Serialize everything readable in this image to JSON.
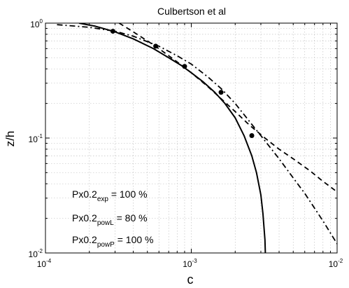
{
  "chart_data": {
    "type": "line",
    "title": "Culbertson et al",
    "xlabel": "c",
    "ylabel": "z/h",
    "xscale": "log",
    "yscale": "log",
    "xlim": [
      0.0001,
      0.01
    ],
    "ylim": [
      0.01,
      1
    ],
    "grid": true,
    "x_ticks": [
      {
        "base": "10",
        "exp": "-4",
        "value": 0.0001
      },
      {
        "base": "10",
        "exp": "-3",
        "value": 0.001
      },
      {
        "base": "10",
        "exp": "-2",
        "value": 0.01
      }
    ],
    "y_ticks": [
      {
        "base": "10",
        "exp": "-2",
        "value": 0.01
      },
      {
        "base": "10",
        "exp": "-1",
        "value": 0.1
      },
      {
        "base": "10",
        "exp": "0",
        "value": 1
      }
    ],
    "series": [
      {
        "style": "solid",
        "color": "#000000",
        "x": [
          0.00017,
          0.00022,
          0.0003,
          0.0004,
          0.00055,
          0.0007,
          0.00085,
          0.001,
          0.0012,
          0.00145,
          0.0017,
          0.002,
          0.0023,
          0.0026,
          0.0028,
          0.003,
          0.0031,
          0.0032,
          0.00322
        ],
        "y": [
          1.0,
          0.94,
          0.84,
          0.73,
          0.6,
          0.5,
          0.43,
          0.37,
          0.31,
          0.25,
          0.2,
          0.15,
          0.105,
          0.07,
          0.05,
          0.032,
          0.022,
          0.013,
          0.01
        ]
      },
      {
        "style": "dashed",
        "color": "#000000",
        "x": [
          0.00032,
          0.0004,
          0.0005,
          0.0006,
          0.0008,
          0.001,
          0.0013,
          0.0016,
          0.002,
          0.0025,
          0.0032,
          0.004,
          0.005,
          0.0065,
          0.008,
          0.01
        ],
        "y": [
          1.0,
          0.84,
          0.7,
          0.6,
          0.46,
          0.37,
          0.28,
          0.22,
          0.17,
          0.13,
          0.1,
          0.08,
          0.066,
          0.052,
          0.042,
          0.034
        ]
      },
      {
        "style": "dashdot",
        "color": "#000000",
        "x": [
          0.00012,
          0.0002,
          0.0003,
          0.0004,
          0.0006,
          0.0008,
          0.001,
          0.0013,
          0.0016,
          0.002,
          0.0025,
          0.003,
          0.004,
          0.005,
          0.006,
          0.008,
          0.01
        ],
        "y": [
          0.97,
          0.92,
          0.85,
          0.77,
          0.63,
          0.52,
          0.44,
          0.34,
          0.27,
          0.2,
          0.14,
          0.105,
          0.066,
          0.045,
          0.033,
          0.019,
          0.012
        ]
      },
      {
        "style": "markers",
        "color": "#000000",
        "x": [
          0.00029,
          0.00057,
          0.0009,
          0.0016,
          0.0026
        ],
        "y": [
          0.85,
          0.63,
          0.42,
          0.25,
          0.105
        ]
      }
    ],
    "annotations": [
      {
        "main": "Px0.2",
        "sub": "exp",
        "suffix": " = 100 %"
      },
      {
        "main": "Px0.2",
        "sub": "powL",
        "suffix": " = 80 %"
      },
      {
        "main": "Px0.2",
        "sub": "powP",
        "suffix": " = 100 %"
      }
    ]
  }
}
